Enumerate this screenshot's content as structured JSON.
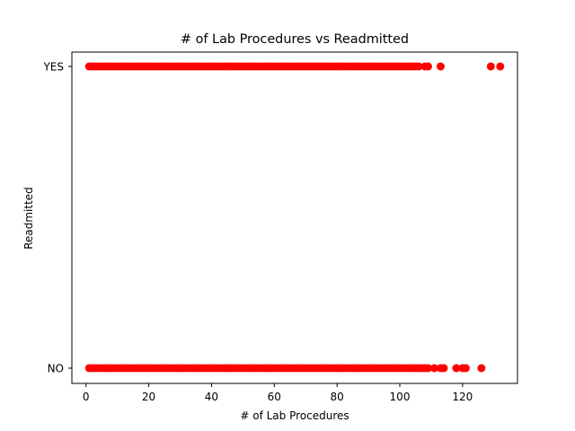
{
  "chart_data": {
    "type": "scatter",
    "title": "# of Lab Procedures vs Readmitted",
    "xlabel": "# of Lab Procedures",
    "ylabel": "Readmitted",
    "xlim": [
      -4.5,
      137.5
    ],
    "x_ticks": [
      0,
      20,
      40,
      60,
      80,
      100,
      120
    ],
    "y_categories": [
      "NO",
      "YES"
    ],
    "grid": false,
    "marker_color": "#ff0000",
    "series": [
      {
        "category": "YES",
        "x_range_dense": [
          1,
          88
        ],
        "x": [
          89,
          90,
          91,
          92,
          93,
          94,
          95,
          96,
          97,
          98,
          99,
          100,
          101,
          102,
          103,
          104,
          105,
          106,
          108,
          109,
          113,
          129,
          132
        ]
      },
      {
        "category": "NO",
        "x_range_dense": [
          1,
          89
        ],
        "x": [
          90,
          91,
          92,
          93,
          94,
          95,
          96,
          97,
          98,
          99,
          100,
          101,
          102,
          103,
          104,
          105,
          106,
          107,
          108,
          109,
          111,
          113,
          114,
          118,
          120,
          121,
          126
        ]
      }
    ]
  }
}
